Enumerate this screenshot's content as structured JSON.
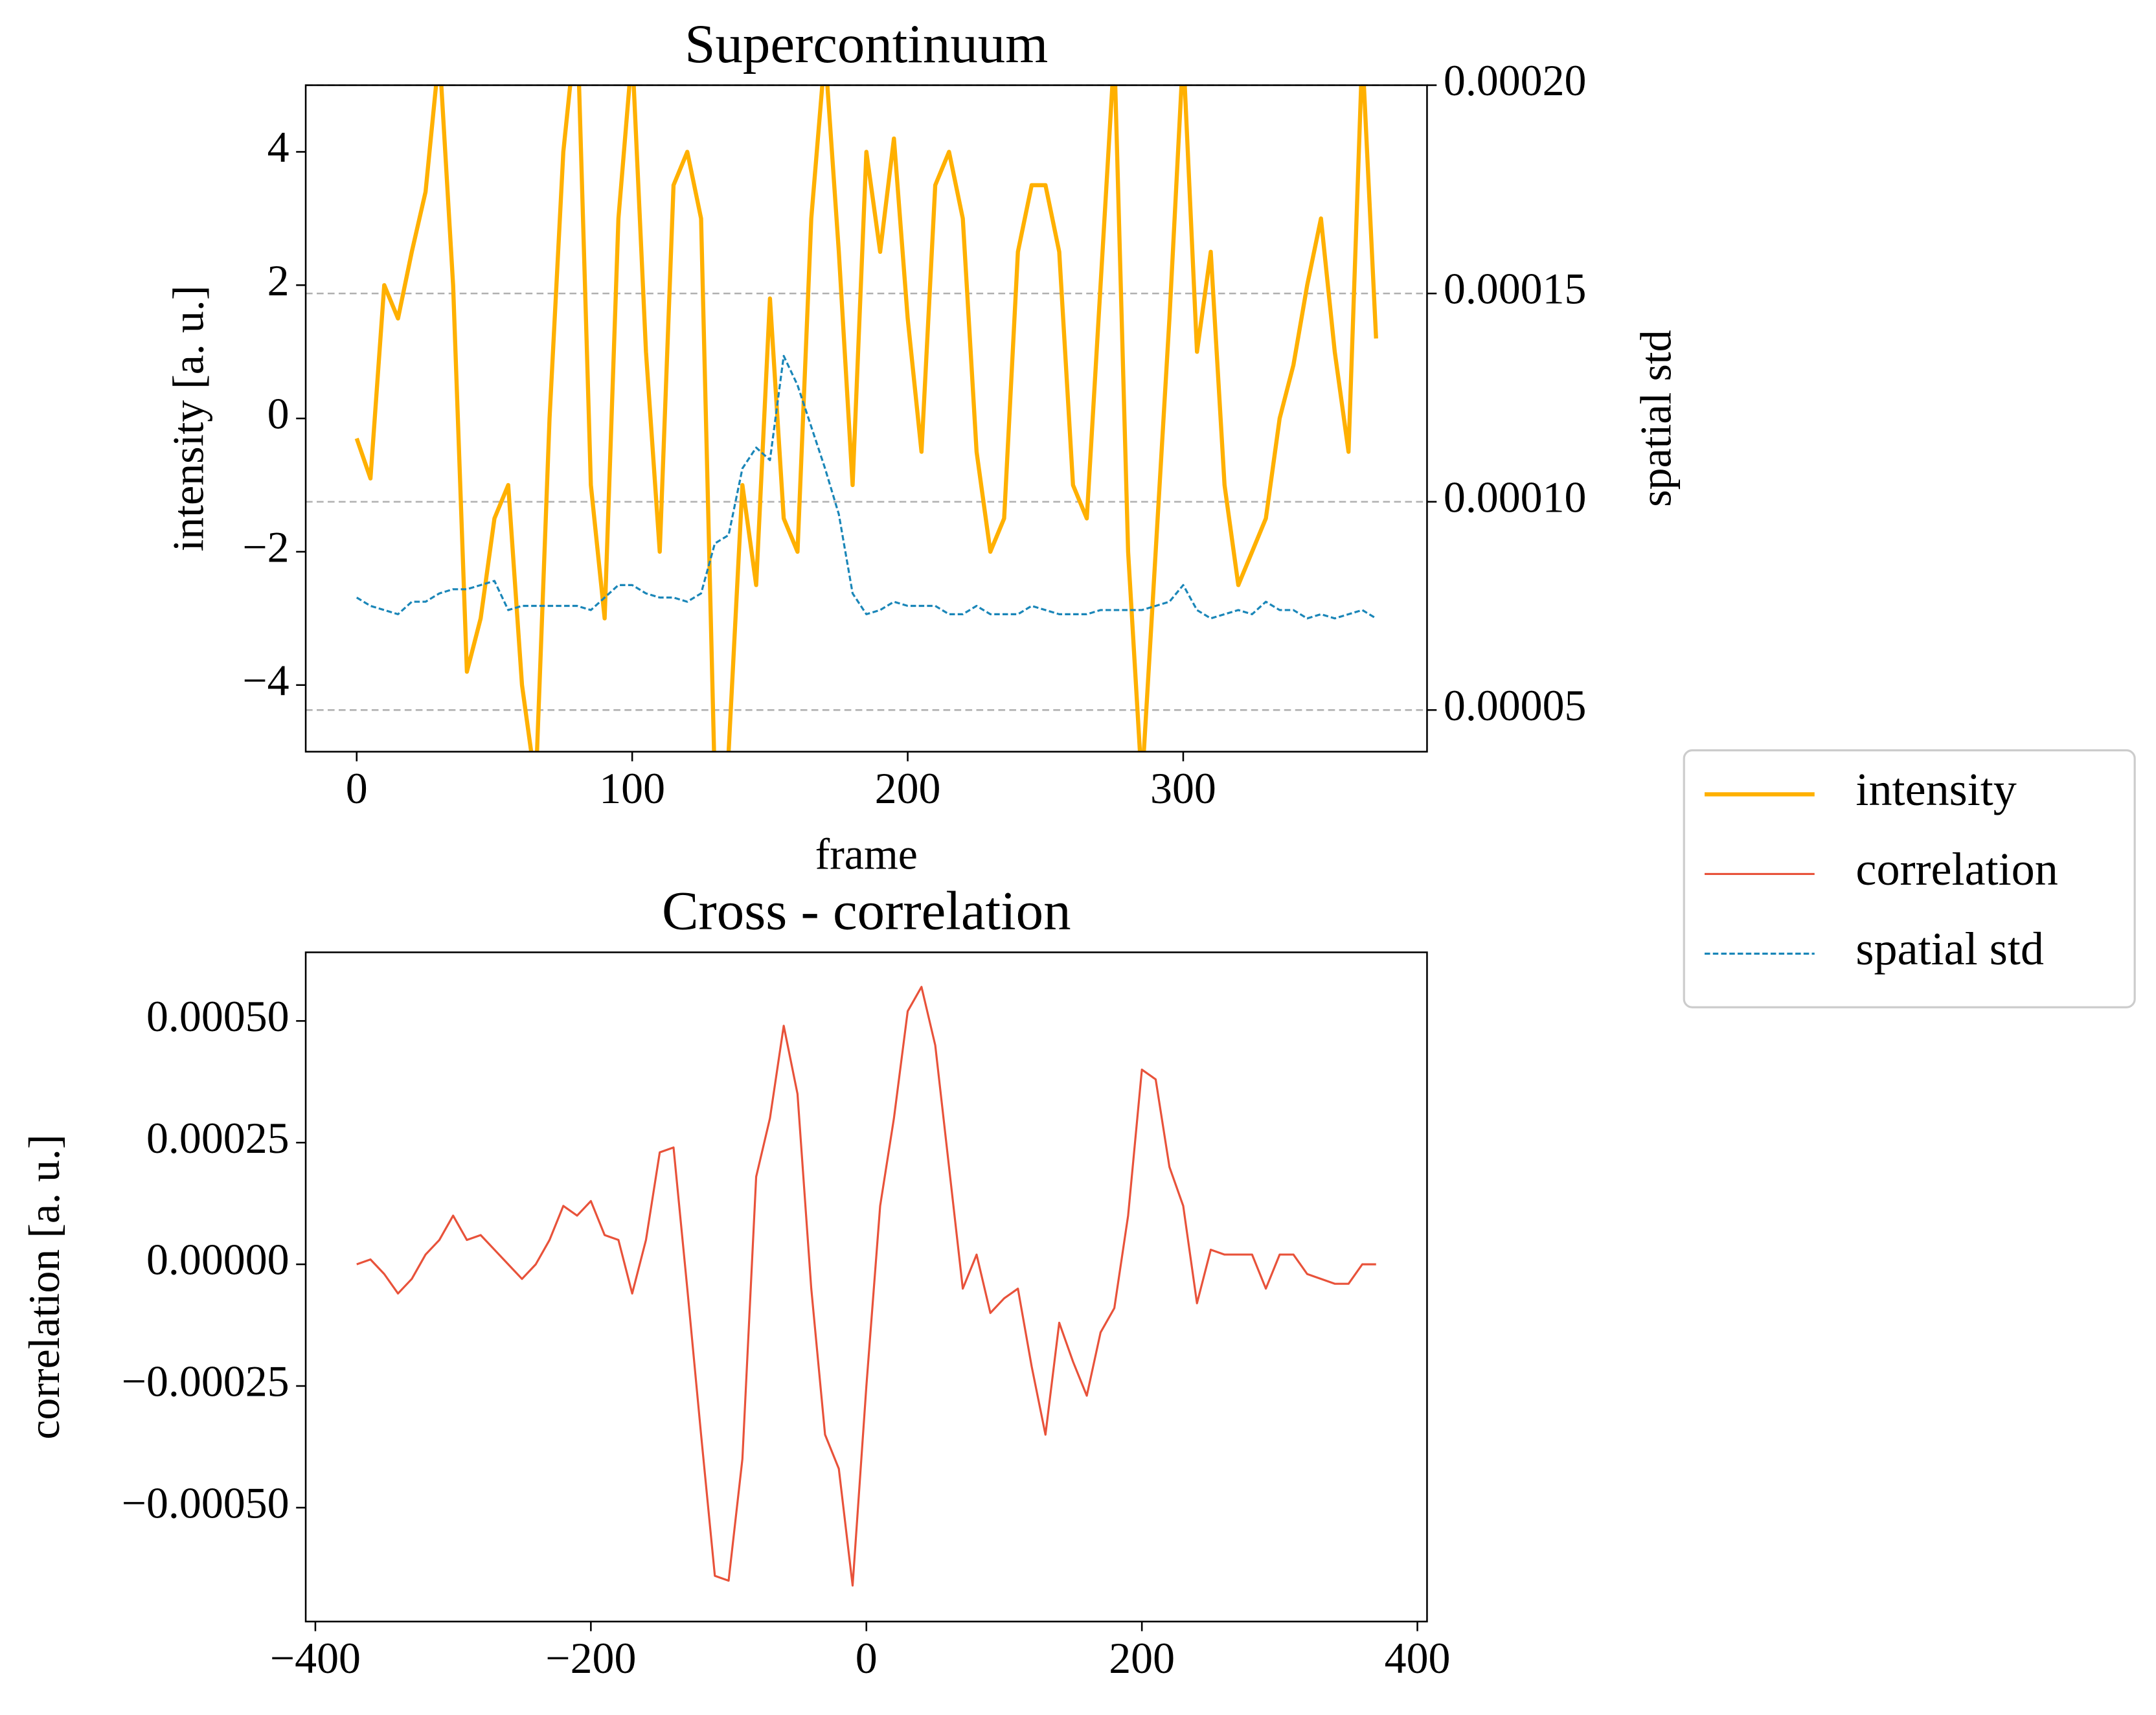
{
  "chart_data": [
    {
      "type": "line",
      "title": "Supercontinuum",
      "xlabel": "frame",
      "ylabel": "intensity [a. u.]",
      "y2label": "spatial std",
      "x": [
        0,
        5,
        10,
        15,
        20,
        25,
        30,
        35,
        40,
        45,
        50,
        55,
        60,
        65,
        70,
        75,
        80,
        85,
        90,
        95,
        100,
        105,
        110,
        115,
        120,
        125,
        130,
        135,
        140,
        145,
        150,
        155,
        160,
        165,
        170,
        175,
        180,
        185,
        190,
        195,
        200,
        205,
        210,
        215,
        220,
        225,
        230,
        235,
        240,
        245,
        250,
        255,
        260,
        265,
        270,
        275,
        280,
        285,
        290,
        295,
        300,
        305,
        310,
        315,
        320,
        325,
        330,
        335,
        340,
        345,
        350,
        355,
        360,
        365,
        370
      ],
      "series": [
        {
          "name": "intensity",
          "color": "#ffb000",
          "values": [
            -0.3,
            -0.9,
            2.0,
            1.5,
            2.5,
            3.4,
            5.5,
            2.0,
            -3.8,
            -3.0,
            -1.5,
            -1.0,
            -4.0,
            -5.5,
            0.0,
            4.0,
            6.0,
            -1.0,
            -3.0,
            3.0,
            5.5,
            1.0,
            -2.0,
            3.5,
            4.0,
            3.0,
            -5.5,
            -5.0,
            -1.0,
            -2.5,
            1.8,
            -1.5,
            -2.0,
            3.0,
            5.5,
            2.5,
            -1.0,
            4.0,
            2.5,
            4.2,
            1.5,
            -0.5,
            3.5,
            4.0,
            3.0,
            -0.5,
            -2.0,
            -1.5,
            2.5,
            3.5,
            3.5,
            2.5,
            -1.0,
            -1.5,
            2.0,
            5.5,
            -2.0,
            -5.5,
            -2.0,
            1.5,
            5.5,
            1.0,
            2.5,
            -1.0,
            -2.5,
            -2.0,
            -1.5,
            0.0,
            0.8,
            2.0,
            3.0,
            1.0,
            -0.5,
            5.5,
            1.2
          ]
        },
        {
          "name": "spatial std",
          "color": "#1a86b8",
          "axis": "y2",
          "dashed": true,
          "values": [
            7.7e-05,
            7.5e-05,
            7.4e-05,
            7.3e-05,
            7.6e-05,
            7.6e-05,
            7.8e-05,
            7.9e-05,
            7.9e-05,
            8e-05,
            8.1e-05,
            7.4e-05,
            7.5e-05,
            7.5e-05,
            7.5e-05,
            7.5e-05,
            7.5e-05,
            7.4e-05,
            7.7e-05,
            8e-05,
            8e-05,
            7.8e-05,
            7.7e-05,
            7.7e-05,
            7.6e-05,
            7.8e-05,
            9e-05,
            9.2e-05,
            0.000108,
            0.000113,
            0.00011,
            0.000135,
            0.000128,
            0.000118,
            0.000108,
            9.7e-05,
            7.8e-05,
            7.3e-05,
            7.4e-05,
            7.6e-05,
            7.5e-05,
            7.5e-05,
            7.5e-05,
            7.3e-05,
            7.3e-05,
            7.5e-05,
            7.3e-05,
            7.3e-05,
            7.3e-05,
            7.5e-05,
            7.4e-05,
            7.3e-05,
            7.3e-05,
            7.3e-05,
            7.4e-05,
            7.4e-05,
            7.4e-05,
            7.4e-05,
            7.5e-05,
            7.6e-05,
            8e-05,
            7.4e-05,
            7.2e-05,
            7.3e-05,
            7.4e-05,
            7.3e-05,
            7.6e-05,
            7.4e-05,
            7.4e-05,
            7.2e-05,
            7.3e-05,
            7.2e-05,
            7.3e-05,
            7.4e-05,
            7.2e-05
          ]
        }
      ],
      "xlim": [
        -18.5,
        388.5
      ],
      "xticks": [
        0,
        100,
        200,
        300
      ],
      "ylim": [
        -5,
        5
      ],
      "yticks": [
        {
          "value": -4,
          "label": "−4"
        },
        {
          "value": -2,
          "label": "−2"
        },
        0,
        2,
        4
      ],
      "y2lim": [
        4e-05,
        0.0002
      ],
      "y2ticks": [
        5e-05,
        {
          "value": 0.0001,
          "label": "0.00010"
        },
        0.00015,
        {
          "value": 0.0002,
          "label": "0.00020"
        }
      ],
      "grid": "y2",
      "legend": "outside right"
    },
    {
      "type": "line",
      "title": "Cross - correlation",
      "ylabel": "correlation [a. u.]",
      "x": [
        -370,
        -360,
        -350,
        -340,
        -330,
        -320,
        -310,
        -300,
        -290,
        -280,
        -270,
        -260,
        -250,
        -240,
        -230,
        -220,
        -210,
        -200,
        -190,
        -180,
        -170,
        -160,
        -150,
        -140,
        -130,
        -120,
        -110,
        -100,
        -90,
        -80,
        -70,
        -60,
        -50,
        -40,
        -30,
        -20,
        -10,
        0,
        10,
        20,
        30,
        40,
        50,
        60,
        70,
        80,
        90,
        100,
        110,
        120,
        130,
        140,
        150,
        160,
        170,
        180,
        190,
        200,
        210,
        220,
        230,
        240,
        250,
        260,
        270,
        280,
        290,
        300,
        310,
        320,
        330,
        340,
        350,
        360,
        370
      ],
      "series": [
        {
          "name": "correlation",
          "color": "#e8523a",
          "values": [
            0,
            1e-05,
            -2e-05,
            -6e-05,
            -3e-05,
            2e-05,
            5e-05,
            0.0001,
            5e-05,
            6e-05,
            3e-05,
            0.0,
            -3e-05,
            0.0,
            5e-05,
            0.00012,
            0.0001,
            0.00013,
            6e-05,
            5e-05,
            -6e-05,
            5e-05,
            0.00023,
            0.00024,
            -5e-05,
            -0.00035,
            -0.00064,
            -0.00065,
            -0.0004,
            0.00018,
            0.0003,
            0.00049,
            0.00035,
            -5e-05,
            -0.00035,
            -0.00042,
            -0.00066,
            -0.00025,
            0.00012,
            0.0003,
            0.00052,
            0.00057,
            0.00045,
            0.0002,
            -5e-05,
            2e-05,
            -0.0001,
            -7e-05,
            -5e-05,
            -0.00021,
            -0.00035,
            -0.00012,
            -0.0002,
            -0.00027,
            -0.00014,
            -9e-05,
            0.0001,
            0.0004,
            0.00038,
            0.0002,
            0.00012,
            -8e-05,
            3e-05,
            2e-05,
            2e-05,
            2e-05,
            -5e-05,
            2e-05,
            2e-05,
            -2e-05,
            -3e-05,
            -4e-05,
            -4e-05,
            0,
            0
          ]
        }
      ],
      "xlim": [
        -407,
        407
      ],
      "xticks": [
        {
          "value": -400,
          "label": "−400"
        },
        {
          "value": -200,
          "label": "−200"
        },
        0,
        200,
        400
      ],
      "ylim": [
        -0.000734,
        0.000641
      ],
      "yticks": [
        {
          "value": -0.0005,
          "label": "−0.00050"
        },
        {
          "value": -0.00025,
          "label": "−0.00025"
        },
        {
          "value": 0,
          "label": "0.00000"
        },
        0.00025,
        {
          "value": 0.0005,
          "label": "0.00050"
        }
      ]
    }
  ]
}
